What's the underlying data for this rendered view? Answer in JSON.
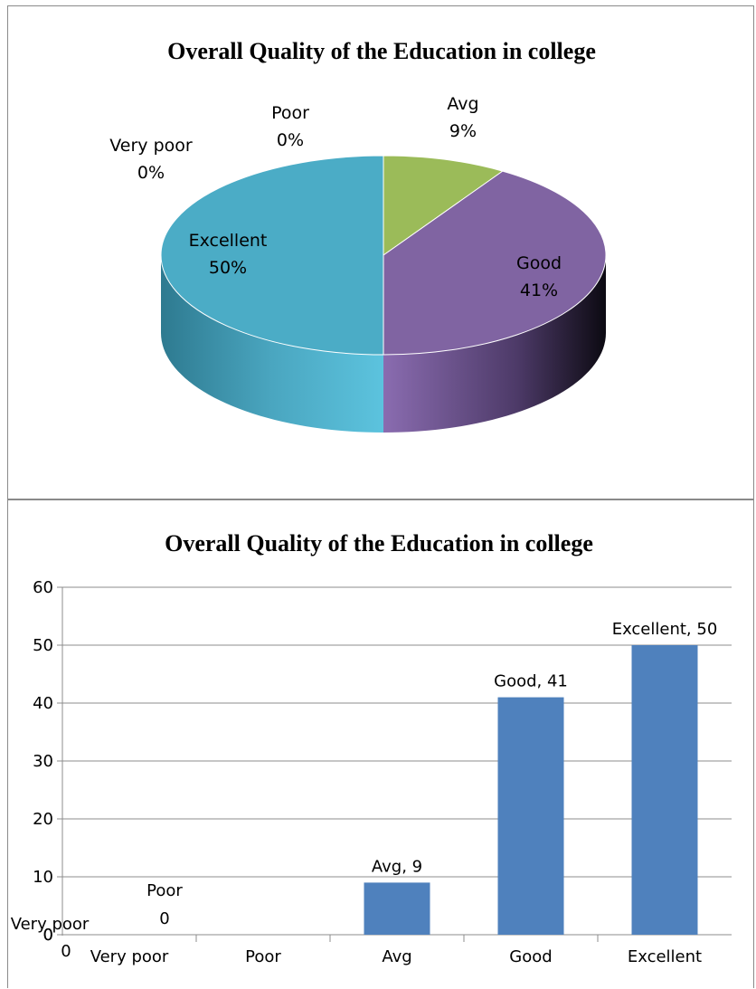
{
  "chart_data": [
    {
      "type": "pie",
      "title": "Overall Quality of the Education in college",
      "categories": [
        "Very poor",
        "Poor",
        "Avg",
        "Good",
        "Excellent"
      ],
      "values": [
        0,
        0,
        9,
        41,
        50
      ],
      "labels": [
        {
          "name": "Very poor",
          "pct": "0%"
        },
        {
          "name": "Poor",
          "pct": "0%"
        },
        {
          "name": "Avg",
          "pct": "9%"
        },
        {
          "name": "Good",
          "pct": "41%"
        },
        {
          "name": "Excellent",
          "pct": "50%"
        }
      ],
      "colors": [
        "#4f81bd",
        "#c0504d",
        "#9bbb59",
        "#8064a2",
        "#4bacc6"
      ],
      "style": "3d"
    },
    {
      "type": "bar",
      "title": "Overall Quality of the Education in college",
      "categories": [
        "Very poor",
        "Poor",
        "Avg",
        "Good",
        "Excellent"
      ],
      "values": [
        0,
        0,
        9,
        41,
        50
      ],
      "data_labels": [
        "Very poor",
        "Poor\n0",
        "Avg, 9",
        "Good, 41",
        "Excellent, 50"
      ],
      "ylim": [
        0,
        60
      ],
      "yticks": [
        0,
        10,
        20,
        30,
        40,
        50,
        60
      ],
      "grid": true,
      "color": "#4f81bd",
      "xlabel": "",
      "ylabel": ""
    }
  ]
}
